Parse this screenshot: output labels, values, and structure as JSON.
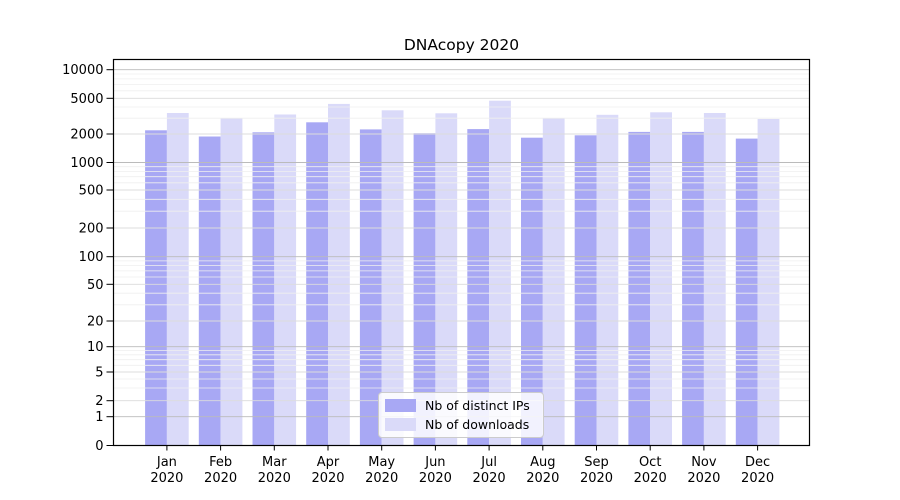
{
  "chart_data": {
    "type": "bar",
    "title": "DNAcopy 2020",
    "categories": [
      "Jan",
      "Feb",
      "Mar",
      "Apr",
      "May",
      "Jun",
      "Jul",
      "Aug",
      "Sep",
      "Oct",
      "Nov",
      "Dec"
    ],
    "category_year": "2020",
    "series": [
      {
        "name": "Nb of distinct IPs",
        "color": "#a8a8f4",
        "values": [
          2200,
          1880,
          2090,
          2700,
          2250,
          2040,
          2270,
          1830,
          1940,
          2110,
          2110,
          1790
        ]
      },
      {
        "name": "Nb of downloads",
        "color": "#dadaf9",
        "values": [
          3430,
          2990,
          3300,
          4330,
          3670,
          3400,
          4700,
          2990,
          3270,
          3490,
          3430,
          2940
        ]
      }
    ],
    "yticks": [
      0,
      1,
      2,
      5,
      10,
      20,
      50,
      100,
      200,
      500,
      1000,
      2000,
      5000,
      10000
    ],
    "y_scale": "symlog",
    "ylim": [
      0,
      13000
    ],
    "xlabel": "",
    "ylabel": "",
    "grid": "horizontal major and log-minor, drawn over bars",
    "legend_position": "lower center"
  },
  "colors": {
    "grid_decade": "#bbbbbb",
    "grid_major": "#dcdcdc",
    "grid_minor": "#efefef",
    "axis": "#000000",
    "text": "#000000"
  }
}
